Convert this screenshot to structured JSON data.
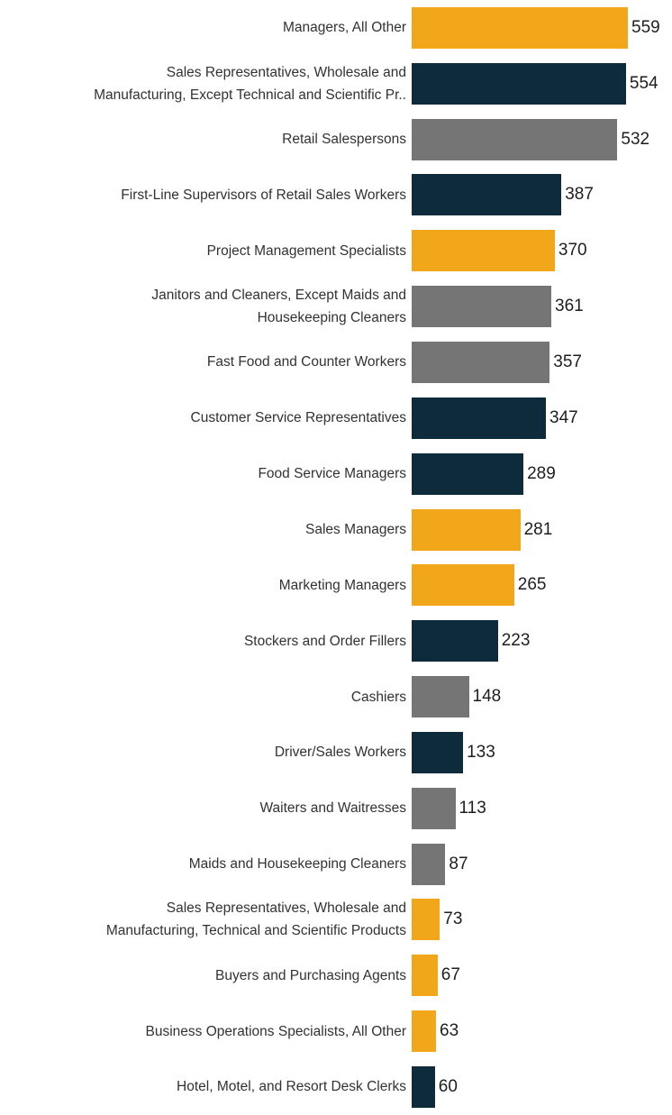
{
  "chart_data": {
    "type": "bar",
    "orientation": "horizontal",
    "title": "",
    "xlabel": "",
    "ylabel": "",
    "xlim": [
      0,
      559
    ],
    "grid": false,
    "legend": null,
    "value_labels_shown": true,
    "palette": {
      "amber": "#F2A71B",
      "navy": "#0D2B3A",
      "gray": "#757575"
    },
    "categories": [
      "Managers, All Other",
      "Sales Representatives, Wholesale and\nManufacturing, Except Technical and Scientific Pr..",
      "Retail Salespersons",
      "First-Line Supervisors of Retail Sales Workers",
      "Project Management Specialists",
      "Janitors and Cleaners, Except Maids and\nHousekeeping Cleaners",
      "Fast Food and Counter Workers",
      "Customer Service Representatives",
      "Food Service Managers",
      "Sales Managers",
      "Marketing Managers",
      "Stockers and Order Fillers",
      "Cashiers",
      "Driver/Sales Workers",
      "Waiters and Waitresses",
      "Maids and Housekeeping Cleaners",
      "Sales Representatives, Wholesale and\nManufacturing, Technical and Scientific Products",
      "Buyers and Purchasing Agents",
      "Business Operations Specialists, All Other",
      "Hotel, Motel, and Resort Desk Clerks"
    ],
    "values": [
      559,
      554,
      532,
      387,
      370,
      361,
      357,
      347,
      289,
      281,
      265,
      223,
      148,
      133,
      113,
      87,
      73,
      67,
      63,
      60
    ],
    "bar_colors": [
      "amber",
      "navy",
      "gray",
      "navy",
      "amber",
      "gray",
      "gray",
      "navy",
      "navy",
      "amber",
      "amber",
      "navy",
      "gray",
      "navy",
      "gray",
      "gray",
      "amber",
      "amber",
      "amber",
      "navy"
    ]
  }
}
